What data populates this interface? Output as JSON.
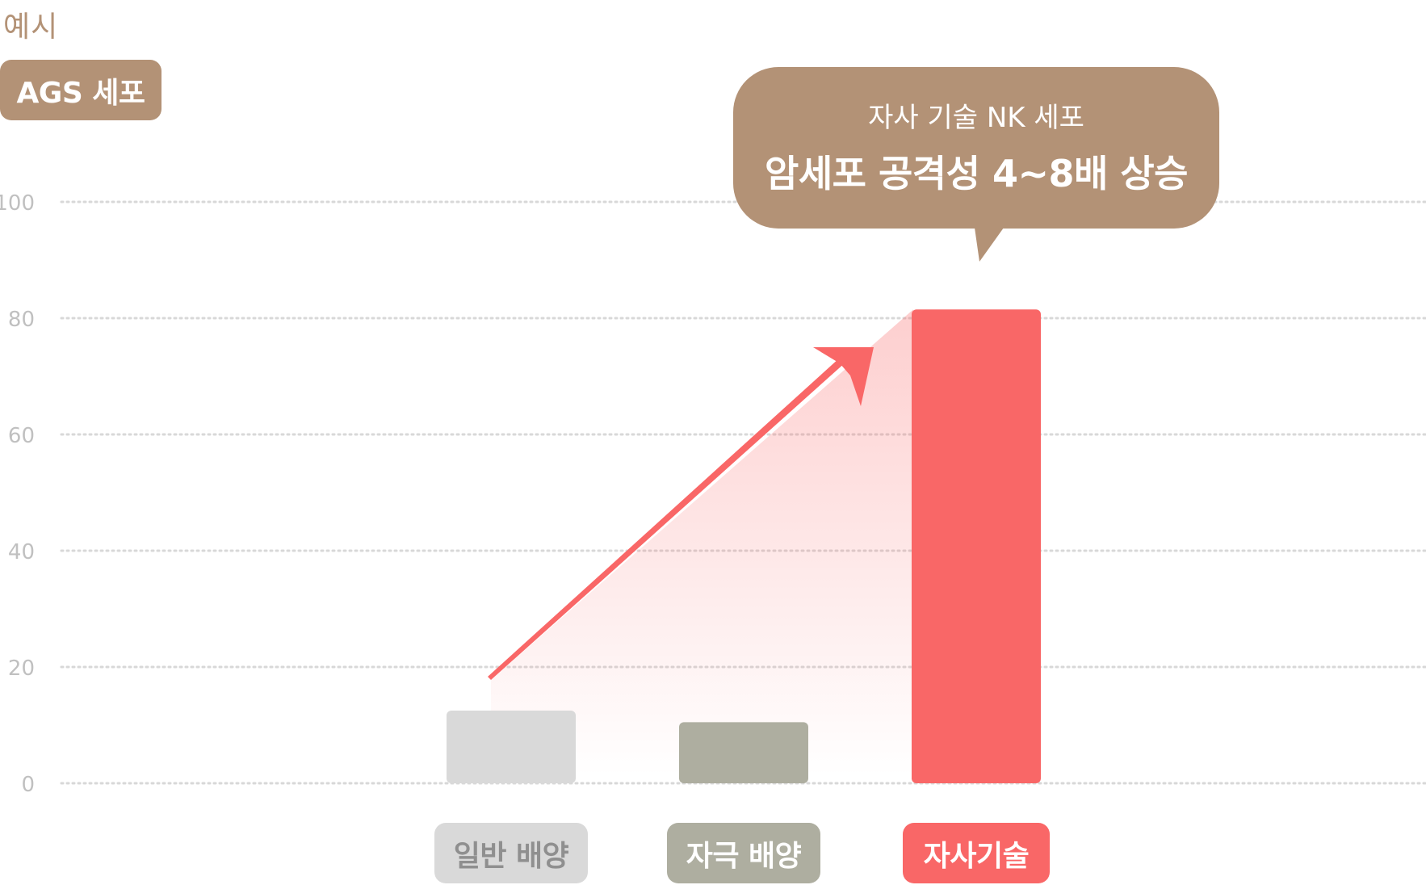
{
  "eyebrow": "예시",
  "cell_label": "AGS 세포",
  "callout": {
    "line1": "자사 기술 NK 세포",
    "line2": "암세포 공격성 4~8배 상승"
  },
  "colors": {
    "brand_brown": "#b39276",
    "accent_red": "#f96767",
    "bar_light_gray": "#d9d9d9",
    "bar_olive_gray": "#aeaea0",
    "grid": "#d8d8d8",
    "tick_text": "#c0c0c0"
  },
  "chart_data": {
    "type": "bar",
    "categories": [
      "일반 배양",
      "자극 배양",
      "자사기술"
    ],
    "values": [
      12.5,
      10.5,
      81.5
    ],
    "bar_colors": [
      "#d9d9d9",
      "#aeaea0",
      "#f96767"
    ],
    "label_text_colors": [
      "#8f8f8f",
      "#ffffff",
      "#ffffff"
    ],
    "ylim": [
      0,
      100
    ],
    "y_ticks": [
      "0",
      "20",
      "40",
      "60",
      "80",
      "100"
    ],
    "grid": true,
    "annotation": "arrow rising from 일반 배양 to 자사기술"
  }
}
